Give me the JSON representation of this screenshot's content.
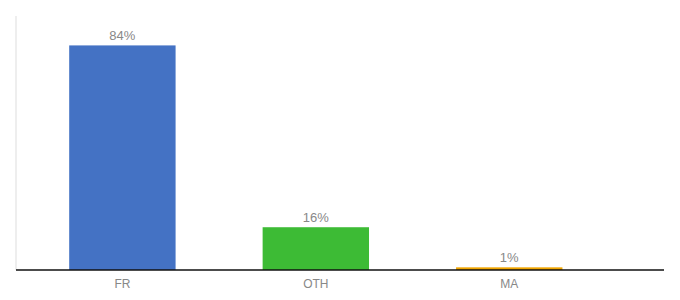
{
  "chart_data": {
    "type": "bar",
    "categories": [
      "FR",
      "OTH",
      "MA"
    ],
    "values": [
      84,
      16,
      1
    ],
    "value_labels": [
      "84%",
      "16%",
      "1%"
    ],
    "colors": [
      "#4472c4",
      "#3dbb35",
      "#f0a500"
    ],
    "ylim": [
      0,
      95
    ],
    "data_labels": true,
    "tick_labels": "x",
    "grid": false
  }
}
